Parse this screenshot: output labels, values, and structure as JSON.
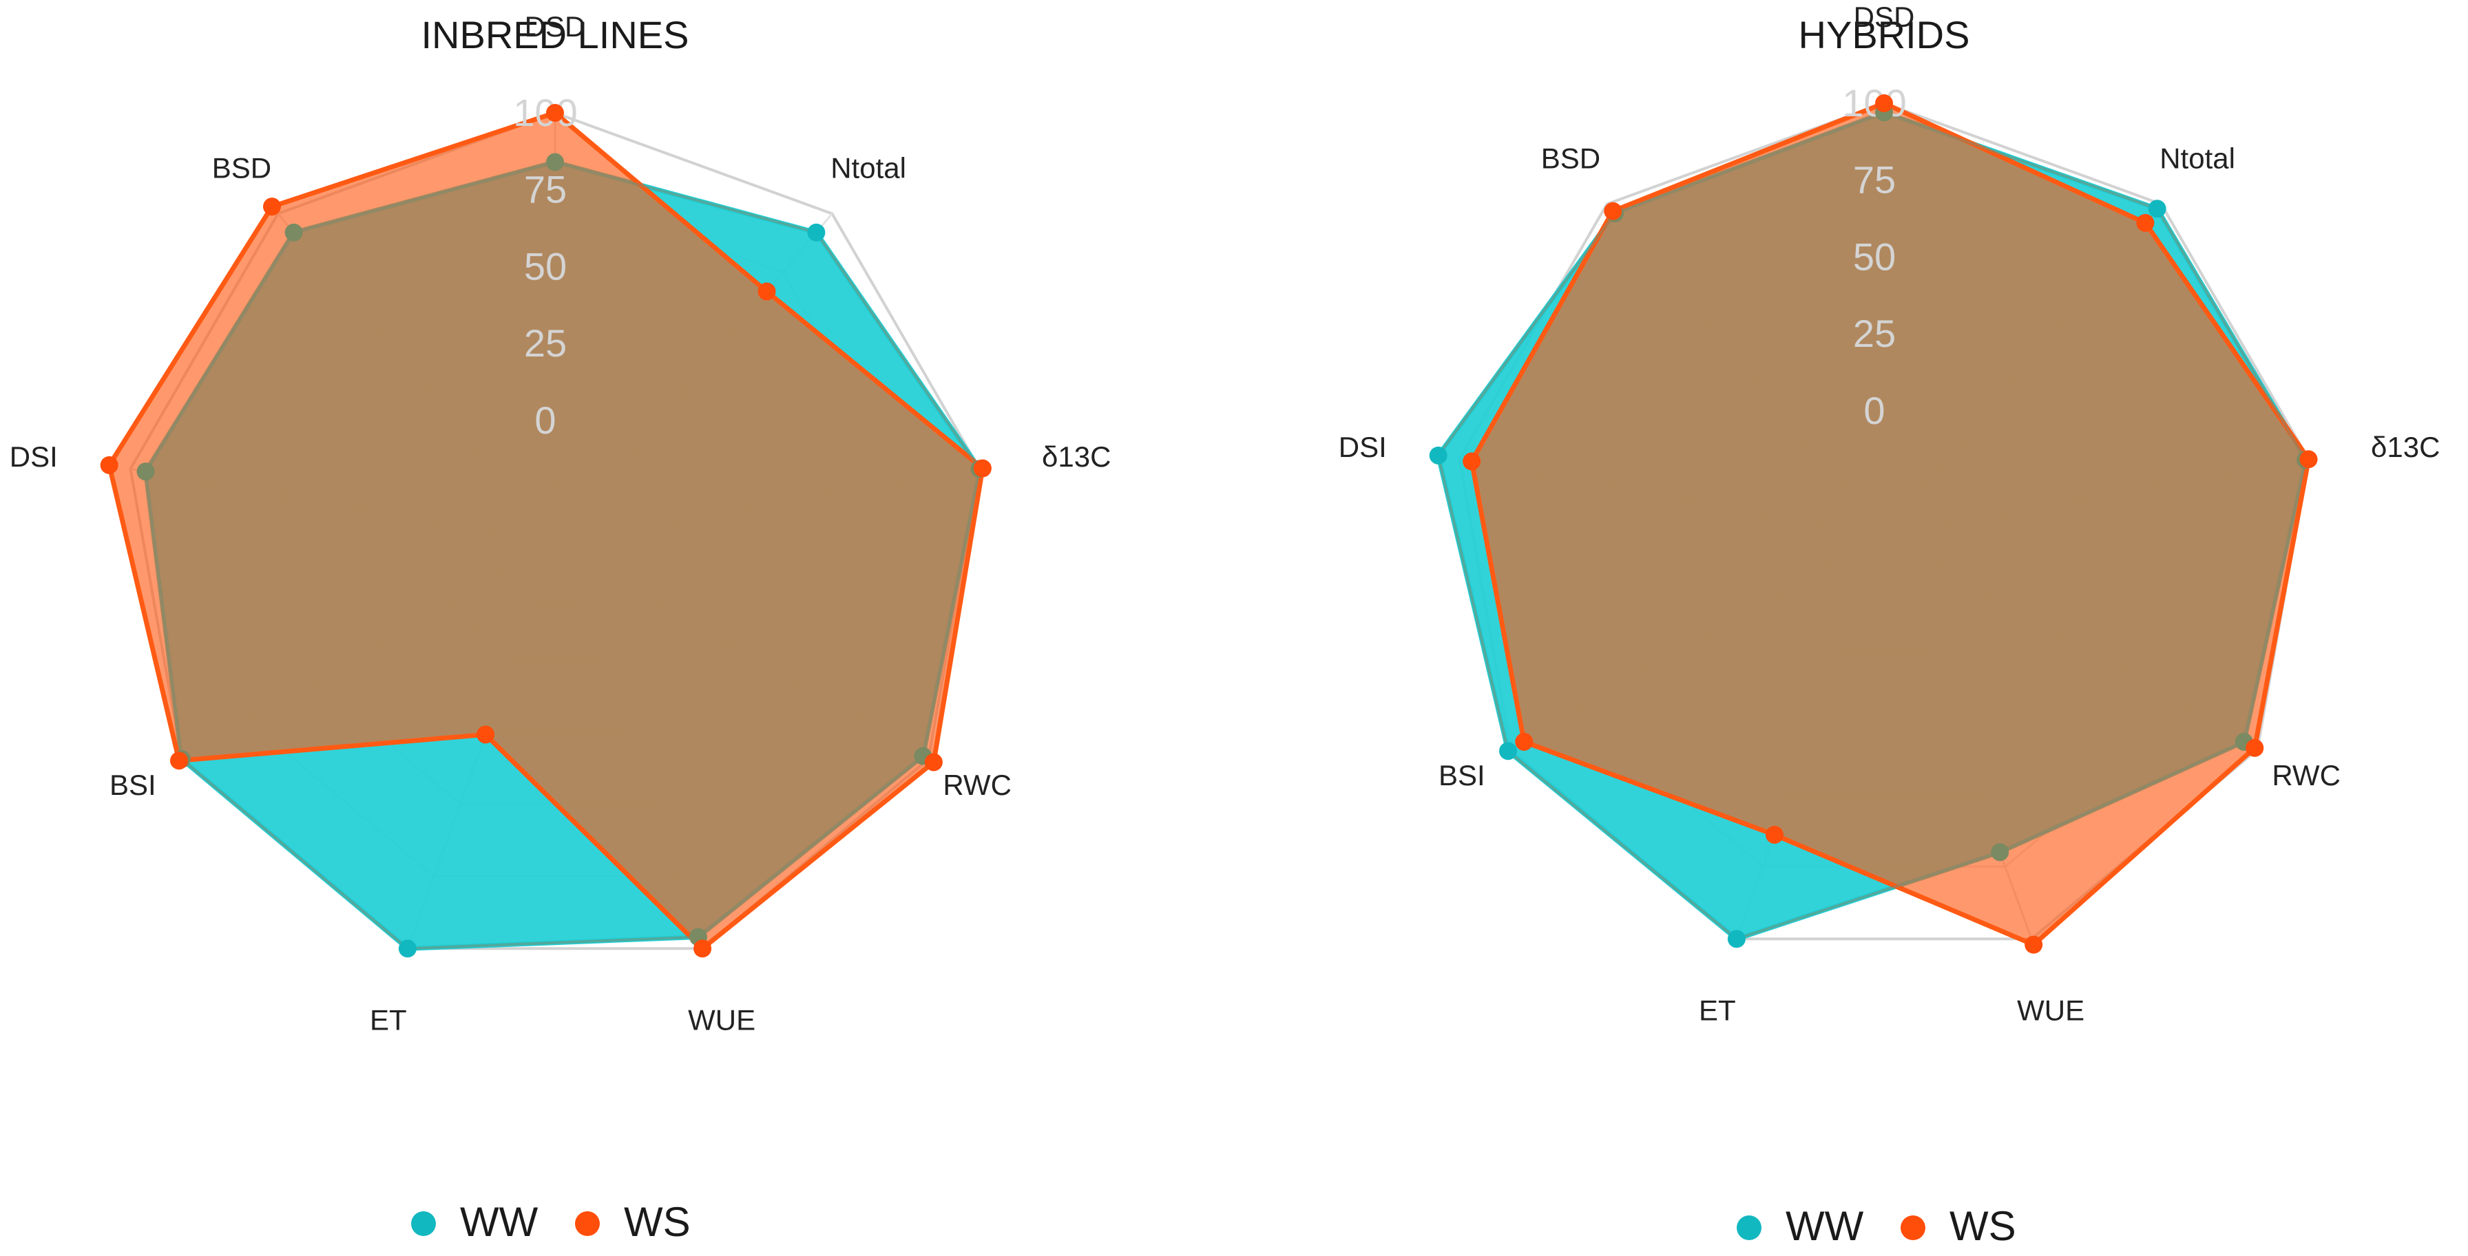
{
  "chart_data": [
    {
      "type": "radar",
      "title": "INBRED LINES",
      "axes": [
        "DSD",
        "Ntotal",
        "δ13C",
        "RWC",
        "WUE",
        "ET",
        "BSI",
        "DSI",
        "BSD"
      ],
      "radial_ticks": [
        "0",
        "25",
        "50",
        "75",
        "100"
      ],
      "rlim": [
        -40,
        100
      ],
      "series": [
        {
          "name": "WW",
          "color": "#1fcfd6",
          "values": [
            84,
            92,
            100,
            98,
            96,
            100,
            100,
            95,
            92
          ]
        },
        {
          "name": "WS",
          "color": "#ff5a14",
          "values": [
            100,
            67,
            101,
            102,
            100,
            26,
            101,
            107,
            103
          ]
        }
      ],
      "legend": [
        {
          "name": "WW",
          "color": "#12b8c0"
        },
        {
          "name": "WS",
          "color": "#ff4d0a"
        }
      ]
    },
    {
      "type": "radar",
      "title": "HYBRIDS",
      "axes": [
        "DSD",
        "Ntotal",
        "δ13C",
        "RWC",
        "WUE",
        "ET",
        "BSI",
        "DSI",
        "BSD"
      ],
      "radial_ticks": [
        "0",
        "25",
        "50",
        "75",
        "100"
      ],
      "rlim": [
        -40,
        100
      ],
      "series": [
        {
          "name": "WW",
          "color": "#1fcfd6",
          "values": [
            97,
            98,
            99,
            95,
            70,
            100,
            101,
            107,
            96
          ]
        },
        {
          "name": "WS",
          "color": "#ff5a14",
          "values": [
            100,
            92,
            100,
            99,
            102,
            64,
            95,
            96,
            97
          ]
        }
      ],
      "legend": [
        {
          "name": "WW",
          "color": "#12b8c0"
        },
        {
          "name": "WS",
          "color": "#ff4d0a"
        }
      ]
    }
  ]
}
